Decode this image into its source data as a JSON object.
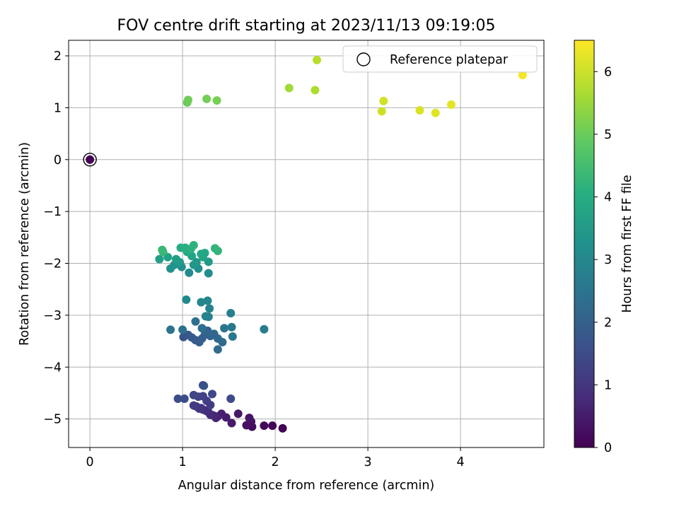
{
  "chart_data": {
    "type": "scatter",
    "title": "FOV centre drift starting at 2023/11/13 09:19:05",
    "xlabel": "Angular distance from reference (arcmin)",
    "ylabel": "Rotation from reference (arcmin)",
    "xlim": [
      -0.23,
      4.9
    ],
    "ylim": [
      -5.55,
      2.3
    ],
    "xticks": [
      0,
      1,
      2,
      3,
      4
    ],
    "yticks": [
      -5,
      -4,
      -3,
      -2,
      -1,
      0,
      1,
      2
    ],
    "grid": true,
    "legend": {
      "position": "top-right",
      "entries": [
        "Reference platepar"
      ]
    },
    "colorbar": {
      "label": "Hours from first FF file",
      "min": 0,
      "max": 6.5,
      "ticks": [
        0,
        1,
        2,
        3,
        4,
        5,
        6
      ],
      "colormap": "viridis"
    },
    "reference_point": {
      "x": 0,
      "y": 0,
      "label": "Reference platepar"
    },
    "points": [
      [
        0,
        0,
        0.0
      ],
      [
        2.08,
        -5.18,
        0.05
      ],
      [
        1.97,
        -5.13,
        0.1
      ],
      [
        1.88,
        -5.13,
        0.15
      ],
      [
        1.75,
        -5.15,
        0.2
      ],
      [
        1.69,
        -5.12,
        0.25
      ],
      [
        1.74,
        -5.05,
        0.3
      ],
      [
        1.72,
        -4.98,
        0.35
      ],
      [
        1.6,
        -4.9,
        0.4
      ],
      [
        1.53,
        -5.08,
        0.45
      ],
      [
        1.47,
        -4.97,
        0.5
      ],
      [
        1.42,
        -4.9,
        0.55
      ],
      [
        1.38,
        -4.95,
        0.6
      ],
      [
        1.36,
        -4.98,
        0.65
      ],
      [
        1.33,
        -4.93,
        0.7
      ],
      [
        1.3,
        -4.92,
        0.75
      ],
      [
        1.28,
        -4.87,
        0.8
      ],
      [
        1.25,
        -4.84,
        0.85
      ],
      [
        1.22,
        -4.82,
        0.9
      ],
      [
        1.2,
        -4.79,
        0.95
      ],
      [
        1.18,
        -4.8,
        1.0
      ],
      [
        1.15,
        -4.76,
        1.05
      ],
      [
        1.12,
        -4.74,
        1.1
      ],
      [
        1.3,
        -4.73,
        1.15
      ],
      [
        1.26,
        -4.65,
        1.2
      ],
      [
        1.22,
        -4.56,
        1.25
      ],
      [
        1.17,
        -4.57,
        1.3
      ],
      [
        1.12,
        -4.54,
        1.35
      ],
      [
        1.32,
        -4.52,
        1.4
      ],
      [
        1.52,
        -4.61,
        1.45
      ],
      [
        1.02,
        -4.61,
        1.5
      ],
      [
        0.95,
        -4.61,
        1.55
      ],
      [
        1.22,
        -4.35,
        1.6
      ],
      [
        1.23,
        -4.36,
        1.65
      ],
      [
        1.01,
        -3.42,
        1.7
      ],
      [
        1.06,
        -3.38,
        1.75
      ],
      [
        1.1,
        -3.43,
        1.8
      ],
      [
        1.14,
        -3.48,
        1.85
      ],
      [
        1.18,
        -3.52,
        1.9
      ],
      [
        1.21,
        -3.45,
        1.95
      ],
      [
        1.24,
        -3.38,
        2.0
      ],
      [
        1.27,
        -3.3,
        2.05
      ],
      [
        1.3,
        -3.4,
        2.1
      ],
      [
        1.34,
        -3.36,
        2.15
      ],
      [
        1.38,
        -3.45,
        2.2
      ],
      [
        1.43,
        -3.52,
        2.25
      ],
      [
        1.38,
        -3.66,
        2.3
      ],
      [
        1.21,
        -3.25,
        2.35
      ],
      [
        1.14,
        -3.12,
        2.4
      ],
      [
        1.0,
        -3.28,
        2.45
      ],
      [
        0.87,
        -3.28,
        2.5
      ],
      [
        1.45,
        -3.25,
        2.55
      ],
      [
        1.53,
        -3.23,
        2.6
      ],
      [
        1.54,
        -3.41,
        2.65
      ],
      [
        1.88,
        -3.27,
        2.7
      ],
      [
        1.52,
        -2.96,
        2.75
      ],
      [
        1.28,
        -3.03,
        2.8
      ],
      [
        1.25,
        -3.02,
        2.85
      ],
      [
        1.29,
        -2.87,
        2.9
      ],
      [
        1.2,
        -2.75,
        2.95
      ],
      [
        1.27,
        -2.72,
        3.0
      ],
      [
        1.04,
        -2.7,
        3.05
      ],
      [
        1.07,
        -2.18,
        3.1
      ],
      [
        1.28,
        -2.19,
        3.15
      ],
      [
        1.17,
        -2.1,
        3.2
      ],
      [
        0.99,
        -2.07,
        3.25
      ],
      [
        0.87,
        -2.1,
        3.3
      ],
      [
        0.91,
        -2.03,
        3.35
      ],
      [
        1.12,
        -2.03,
        3.4
      ],
      [
        1.15,
        -1.98,
        3.45
      ],
      [
        1.28,
        -1.97,
        3.5
      ],
      [
        0.97,
        -1.98,
        3.55
      ],
      [
        0.93,
        -1.92,
        3.6
      ],
      [
        0.75,
        -1.92,
        3.65
      ],
      [
        0.84,
        -1.88,
        3.7
      ],
      [
        1.22,
        -1.88,
        3.75
      ],
      [
        1.1,
        -1.86,
        3.8
      ],
      [
        1.2,
        -1.82,
        3.85
      ],
      [
        1.24,
        -1.8,
        3.9
      ],
      [
        1.05,
        -1.78,
        3.95
      ],
      [
        0.98,
        -1.7,
        4.0
      ],
      [
        1.03,
        -1.7,
        4.05
      ],
      [
        1.09,
        -1.72,
        4.1
      ],
      [
        1.12,
        -1.65,
        4.15
      ],
      [
        1.38,
        -1.76,
        4.2
      ],
      [
        1.35,
        -1.71,
        4.25
      ],
      [
        0.79,
        -1.78,
        4.3
      ],
      [
        0.78,
        -1.74,
        4.35
      ],
      [
        1.05,
        1.1,
        5.0
      ],
      [
        1.06,
        1.15,
        5.05
      ],
      [
        1.26,
        1.17,
        5.1
      ],
      [
        1.37,
        1.14,
        5.15
      ],
      [
        2.15,
        1.38,
        5.6
      ],
      [
        2.43,
        1.34,
        5.7
      ],
      [
        2.45,
        1.92,
        5.8
      ],
      [
        3.15,
        0.93,
        6.0
      ],
      [
        3.17,
        1.13,
        6.05
      ],
      [
        3.56,
        0.95,
        6.15
      ],
      [
        3.73,
        0.9,
        6.2
      ],
      [
        3.9,
        1.06,
        6.25
      ],
      [
        4.67,
        1.63,
        6.4
      ]
    ]
  }
}
